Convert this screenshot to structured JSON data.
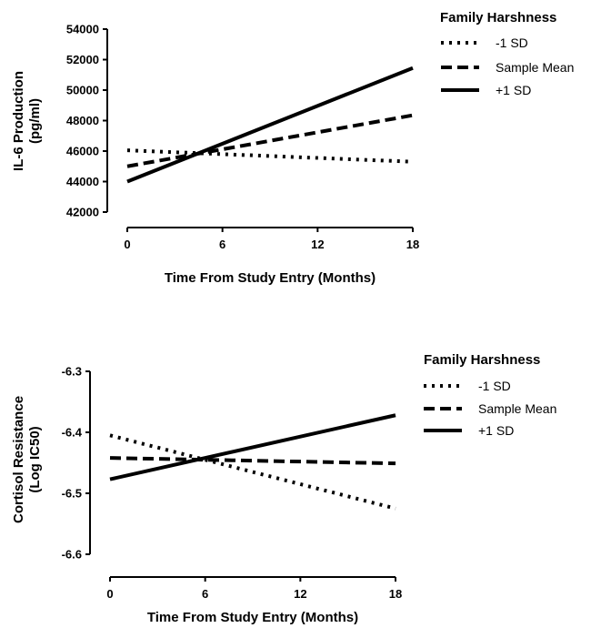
{
  "chart_data": [
    {
      "type": "line",
      "xlabel": "Time From Study Entry (Months)",
      "ylabel": "IL-6 Production (pg/ml)",
      "ylabel_lines": [
        "IL-6 Production",
        "(pg/ml)"
      ],
      "xlim": [
        0,
        18
      ],
      "ylim": [
        42000,
        54000
      ],
      "x_ticks": [
        0,
        6,
        12,
        18
      ],
      "y_ticks": [
        42000,
        44000,
        46000,
        48000,
        50000,
        52000,
        54000
      ],
      "x_tick_labels": [
        "0",
        "6",
        "12",
        "18"
      ],
      "y_tick_labels": [
        "42000",
        "44000",
        "46000",
        "48000",
        "50000",
        "52000",
        "54000"
      ],
      "grid": false,
      "legend": {
        "title": "Family Harshness",
        "position": "top-right"
      },
      "x": [
        0,
        18
      ],
      "series": [
        {
          "name": "-1 SD",
          "style": "dotted",
          "values": [
            46050,
            45300
          ]
        },
        {
          "name": "Sample Mean",
          "style": "dashed",
          "values": [
            45000,
            48350
          ]
        },
        {
          "name": "+1 SD",
          "style": "solid",
          "values": [
            44000,
            51450
          ]
        }
      ]
    },
    {
      "type": "line",
      "xlabel": "Time From Study Entry (Months)",
      "ylabel": "Cortisol Resistance (Log IC50)",
      "ylabel_lines": [
        "Cortisol Resistance",
        "(Log IC50)"
      ],
      "xlim": [
        0,
        18
      ],
      "ylim": [
        -6.6,
        -6.3
      ],
      "x_ticks": [
        0,
        6,
        12,
        18
      ],
      "y_ticks": [
        -6.6,
        -6.5,
        -6.4,
        -6.3
      ],
      "x_tick_labels": [
        "0",
        "6",
        "12",
        "18"
      ],
      "y_tick_labels": [
        "-6.6",
        "-6.5",
        "-6.4",
        "-6.3"
      ],
      "grid": false,
      "legend": {
        "title": "Family Harshness",
        "position": "top-right"
      },
      "x": [
        0,
        18
      ],
      "series": [
        {
          "name": "-1 SD",
          "style": "dotted",
          "values": [
            -6.405,
            -6.525
          ]
        },
        {
          "name": "Sample Mean",
          "style": "dashed",
          "values": [
            -6.442,
            -6.451
          ]
        },
        {
          "name": "+1 SD",
          "style": "solid",
          "values": [
            -6.477,
            -6.372
          ]
        }
      ]
    }
  ]
}
